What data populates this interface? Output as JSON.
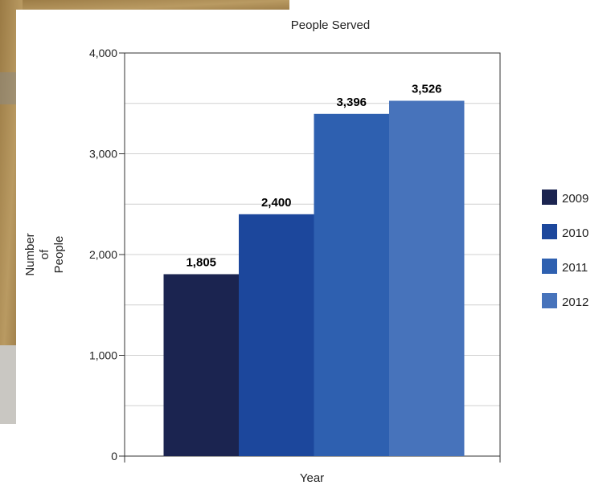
{
  "chart_data": {
    "type": "bar",
    "title": "People Served",
    "xlabel": "Year",
    "ylabel_lines": [
      "Number",
      "of",
      "People"
    ],
    "categories": [
      "2009",
      "2010",
      "2011",
      "2012"
    ],
    "values": [
      1805,
      2400,
      3396,
      3526
    ],
    "value_labels": [
      "1,805",
      "2,400",
      "3,396",
      "3,526"
    ],
    "ylim": [
      0,
      4000
    ],
    "yticks": [
      0,
      1000,
      2000,
      3000,
      4000
    ],
    "ytick_labels": [
      "0",
      "1,000",
      "2,000",
      "3,000",
      "4,000"
    ],
    "grid": true,
    "legend_position": "right",
    "colors": [
      "#1b2450",
      "#1c479c",
      "#2e60b0",
      "#4773bb"
    ]
  }
}
